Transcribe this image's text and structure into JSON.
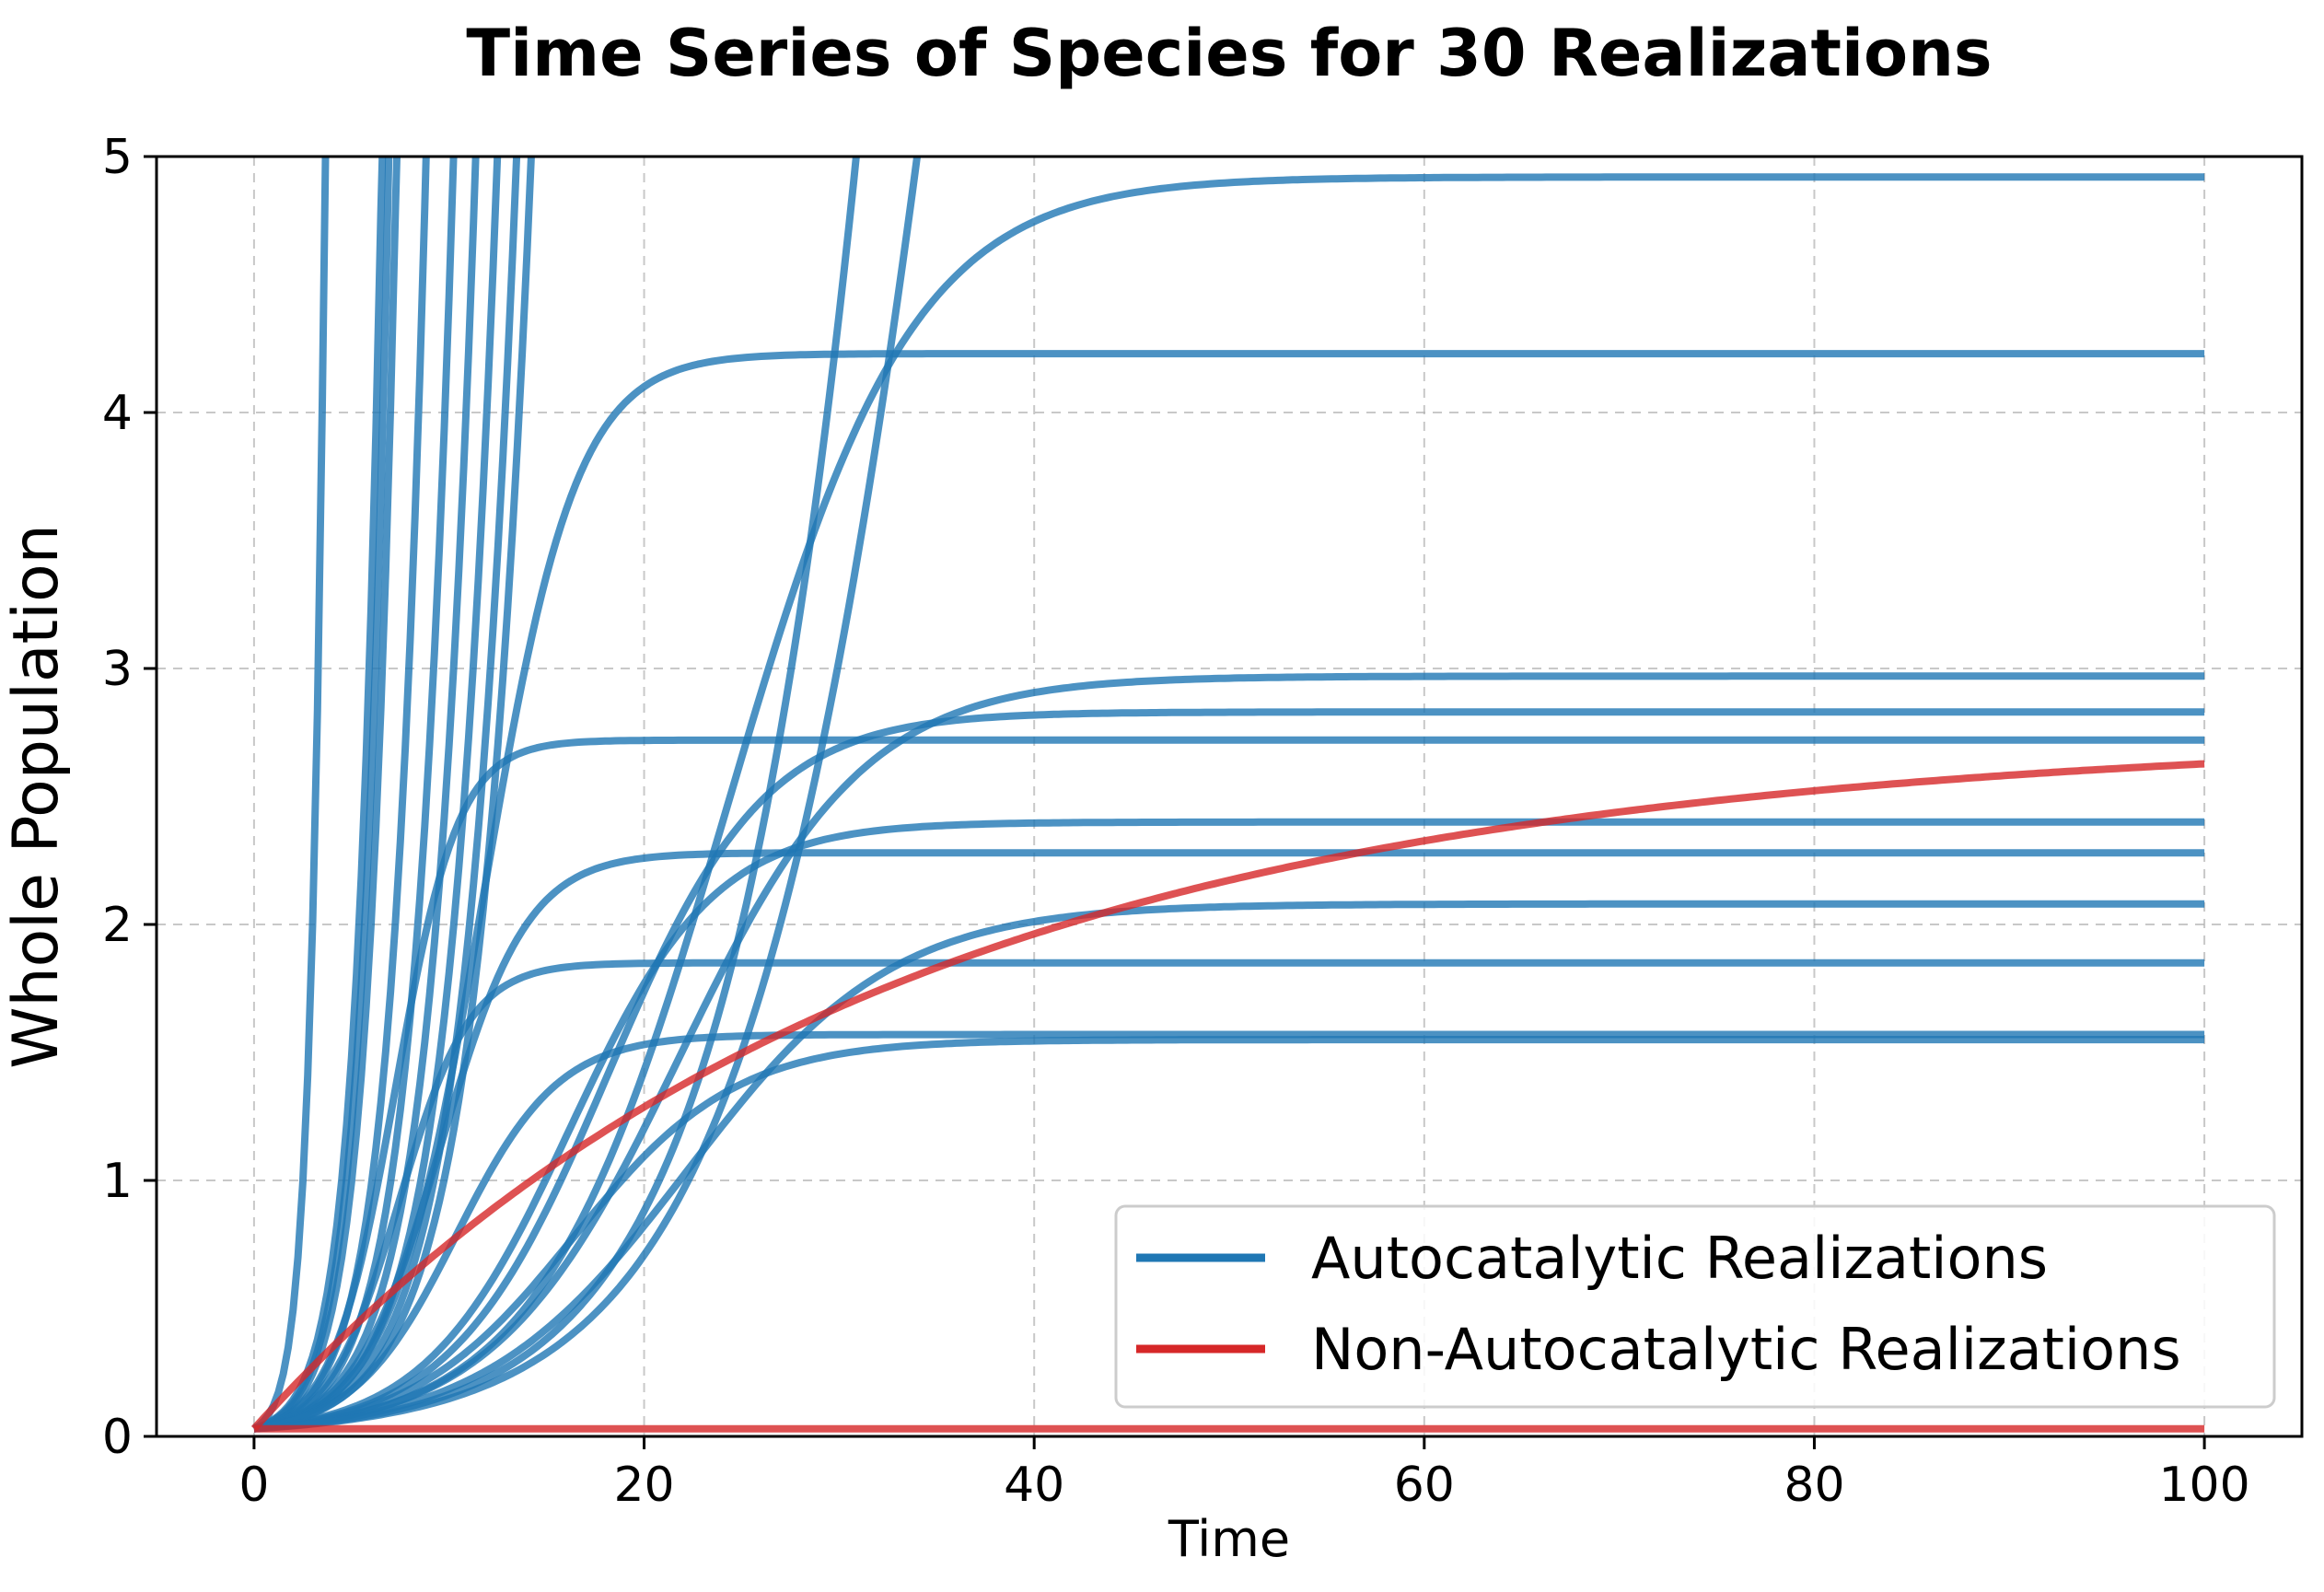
{
  "chart_data": {
    "type": "line",
    "title": "Time Series of Species for 30 Realizations",
    "xlabel": "Time",
    "ylabel": "Whole Population",
    "xlim": [
      -5,
      105
    ],
    "ylim": [
      0,
      5
    ],
    "xticks": [
      "0",
      "20",
      "40",
      "60",
      "80",
      "100"
    ],
    "yticks": [
      "0",
      "1",
      "2",
      "3",
      "4",
      "5"
    ],
    "grid": true,
    "legend_position": "bottom-right",
    "colors": {
      "autocatalytic": "#1f77b4",
      "non_autocatalytic": "#d62728"
    },
    "legend": [
      {
        "label": "Autocatalytic Realizations",
        "color": "#1f77b4"
      },
      {
        "label": "Non-Autocatalytic Realizations",
        "color": "#d62728"
      }
    ],
    "series": [
      {
        "group": "autocatalytic",
        "model": "logistic",
        "K": 4.92,
        "r": 0.21
      },
      {
        "group": "autocatalytic",
        "model": "logistic",
        "K": 4.23,
        "r": 0.42
      },
      {
        "group": "autocatalytic",
        "model": "logistic",
        "K": 2.97,
        "r": 0.21
      },
      {
        "group": "autocatalytic",
        "model": "logistic",
        "K": 2.83,
        "r": 0.25
      },
      {
        "group": "autocatalytic",
        "model": "logistic",
        "K": 2.72,
        "r": 0.62
      },
      {
        "group": "autocatalytic",
        "model": "logistic",
        "K": 2.4,
        "r": 0.27
      },
      {
        "group": "autocatalytic",
        "model": "logistic",
        "K": 2.28,
        "r": 0.45
      },
      {
        "group": "autocatalytic",
        "model": "logistic",
        "K": 2.08,
        "r": 0.19
      },
      {
        "group": "autocatalytic",
        "model": "logistic",
        "K": 1.85,
        "r": 0.55
      },
      {
        "group": "autocatalytic",
        "model": "logistic",
        "K": 1.57,
        "r": 0.38
      },
      {
        "group": "autocatalytic",
        "model": "logistic",
        "K": 1.55,
        "r": 0.24
      },
      {
        "group": "autocatalytic",
        "model": "exponential",
        "r": 1.4
      },
      {
        "group": "autocatalytic",
        "model": "exponential",
        "r": 0.78
      },
      {
        "group": "autocatalytic",
        "model": "exponential",
        "r": 0.74
      },
      {
        "group": "autocatalytic",
        "model": "exponential",
        "r": 0.7
      },
      {
        "group": "autocatalytic",
        "model": "exponential",
        "r": 0.58
      },
      {
        "group": "autocatalytic",
        "model": "exponential",
        "r": 0.5
      },
      {
        "group": "autocatalytic",
        "model": "exponential",
        "r": 0.45
      },
      {
        "group": "autocatalytic",
        "model": "exponential",
        "r": 0.41
      },
      {
        "group": "autocatalytic",
        "model": "exponential",
        "r": 0.38
      },
      {
        "group": "autocatalytic",
        "model": "exponential",
        "r": 0.36
      },
      {
        "group": "autocatalytic",
        "model": "logistic",
        "K": 18,
        "r": 0.16
      },
      {
        "group": "autocatalytic",
        "model": "logistic",
        "K": 40,
        "r": 0.17
      },
      {
        "group": "non_autocatalytic",
        "model": "saturating",
        "K": 2.75,
        "k": 0.031
      },
      {
        "group": "non_autocatalytic",
        "model": "constant",
        "value": 0.03
      }
    ]
  }
}
